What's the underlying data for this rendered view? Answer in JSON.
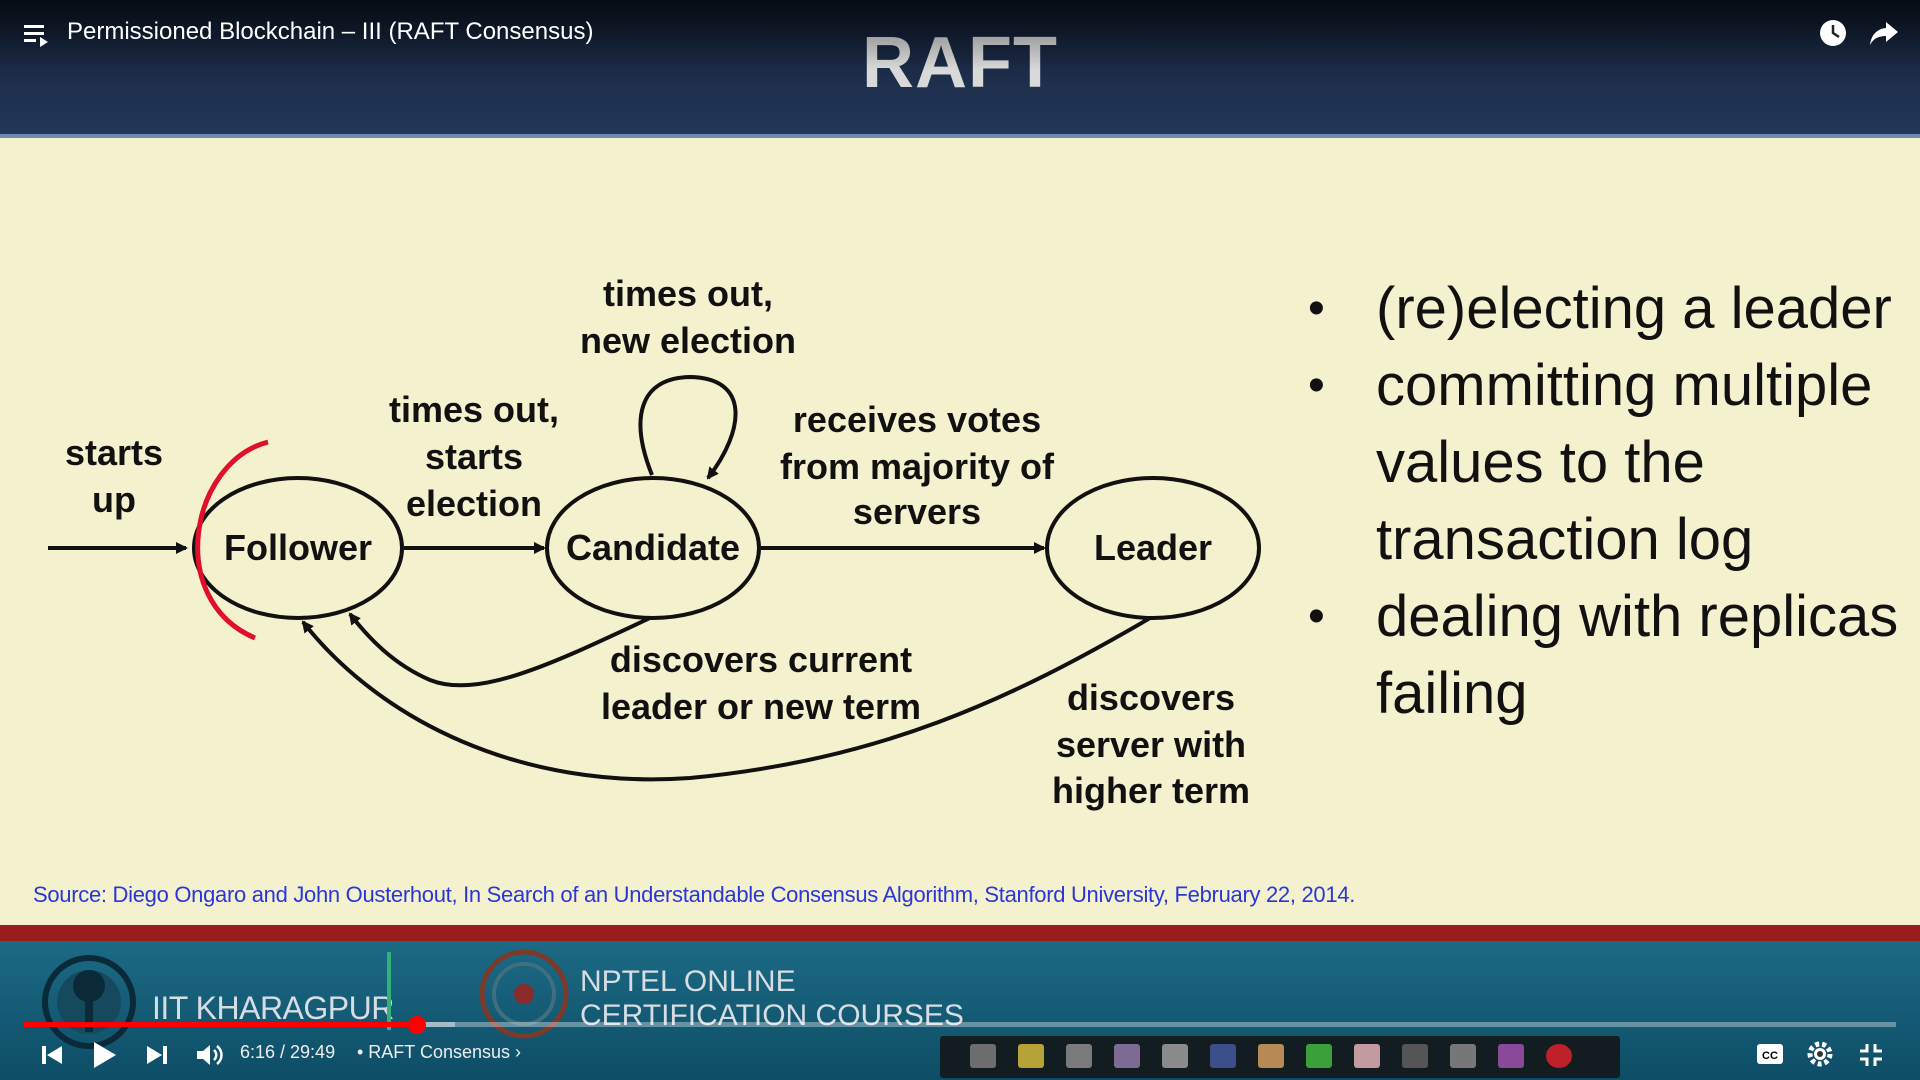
{
  "player": {
    "video_title": "Permissioned Blockchain – III (RAFT Consensus)",
    "current_time": "6:16",
    "duration": "29:49",
    "time_display": "6:16 / 29:49",
    "chapter": "• RAFT Consensus ›",
    "progress_fraction": 0.21,
    "buffer_fraction": 0.23,
    "accent_color": "#ff0000",
    "icons": [
      "menu-icon",
      "watch-later-icon",
      "share-icon",
      "previous-icon",
      "play-icon",
      "next-icon",
      "volume-icon",
      "captions-icon",
      "settings-icon",
      "exit-fullscreen-icon"
    ]
  },
  "slide": {
    "title": "RAFT",
    "diagram": {
      "states": [
        "Follower",
        "Candidate",
        "Leader"
      ],
      "labels": {
        "starts_up_1": "starts",
        "starts_up_2": "up",
        "times_out_start_1": "times out,",
        "times_out_start_2": "starts",
        "times_out_start_3": "election",
        "times_out_new_1": "times out,",
        "times_out_new_2": "new election",
        "receives_votes_1": "receives votes",
        "receives_votes_2": "from majority of",
        "receives_votes_3": "servers",
        "discovers_current_1": "discovers current",
        "discovers_current_2": "leader or new term",
        "discovers_server_1": "discovers",
        "discovers_server_2": "server with",
        "discovers_server_3": "higher term"
      }
    },
    "bullets": [
      "(re)electing a leader",
      "committing multiple values to the transaction log",
      "dealing with replicas failing"
    ],
    "source": "Source: Diego Ongaro and John Ousterhout, In Search of an Understandable Consensus Algorithm, Stanford University, February 22, 2014.",
    "footer": {
      "iit": "IIT KHARAGPUR",
      "nptel_line1": "NPTEL ONLINE",
      "nptel_line2": "CERTIFICATION COURSES"
    }
  }
}
